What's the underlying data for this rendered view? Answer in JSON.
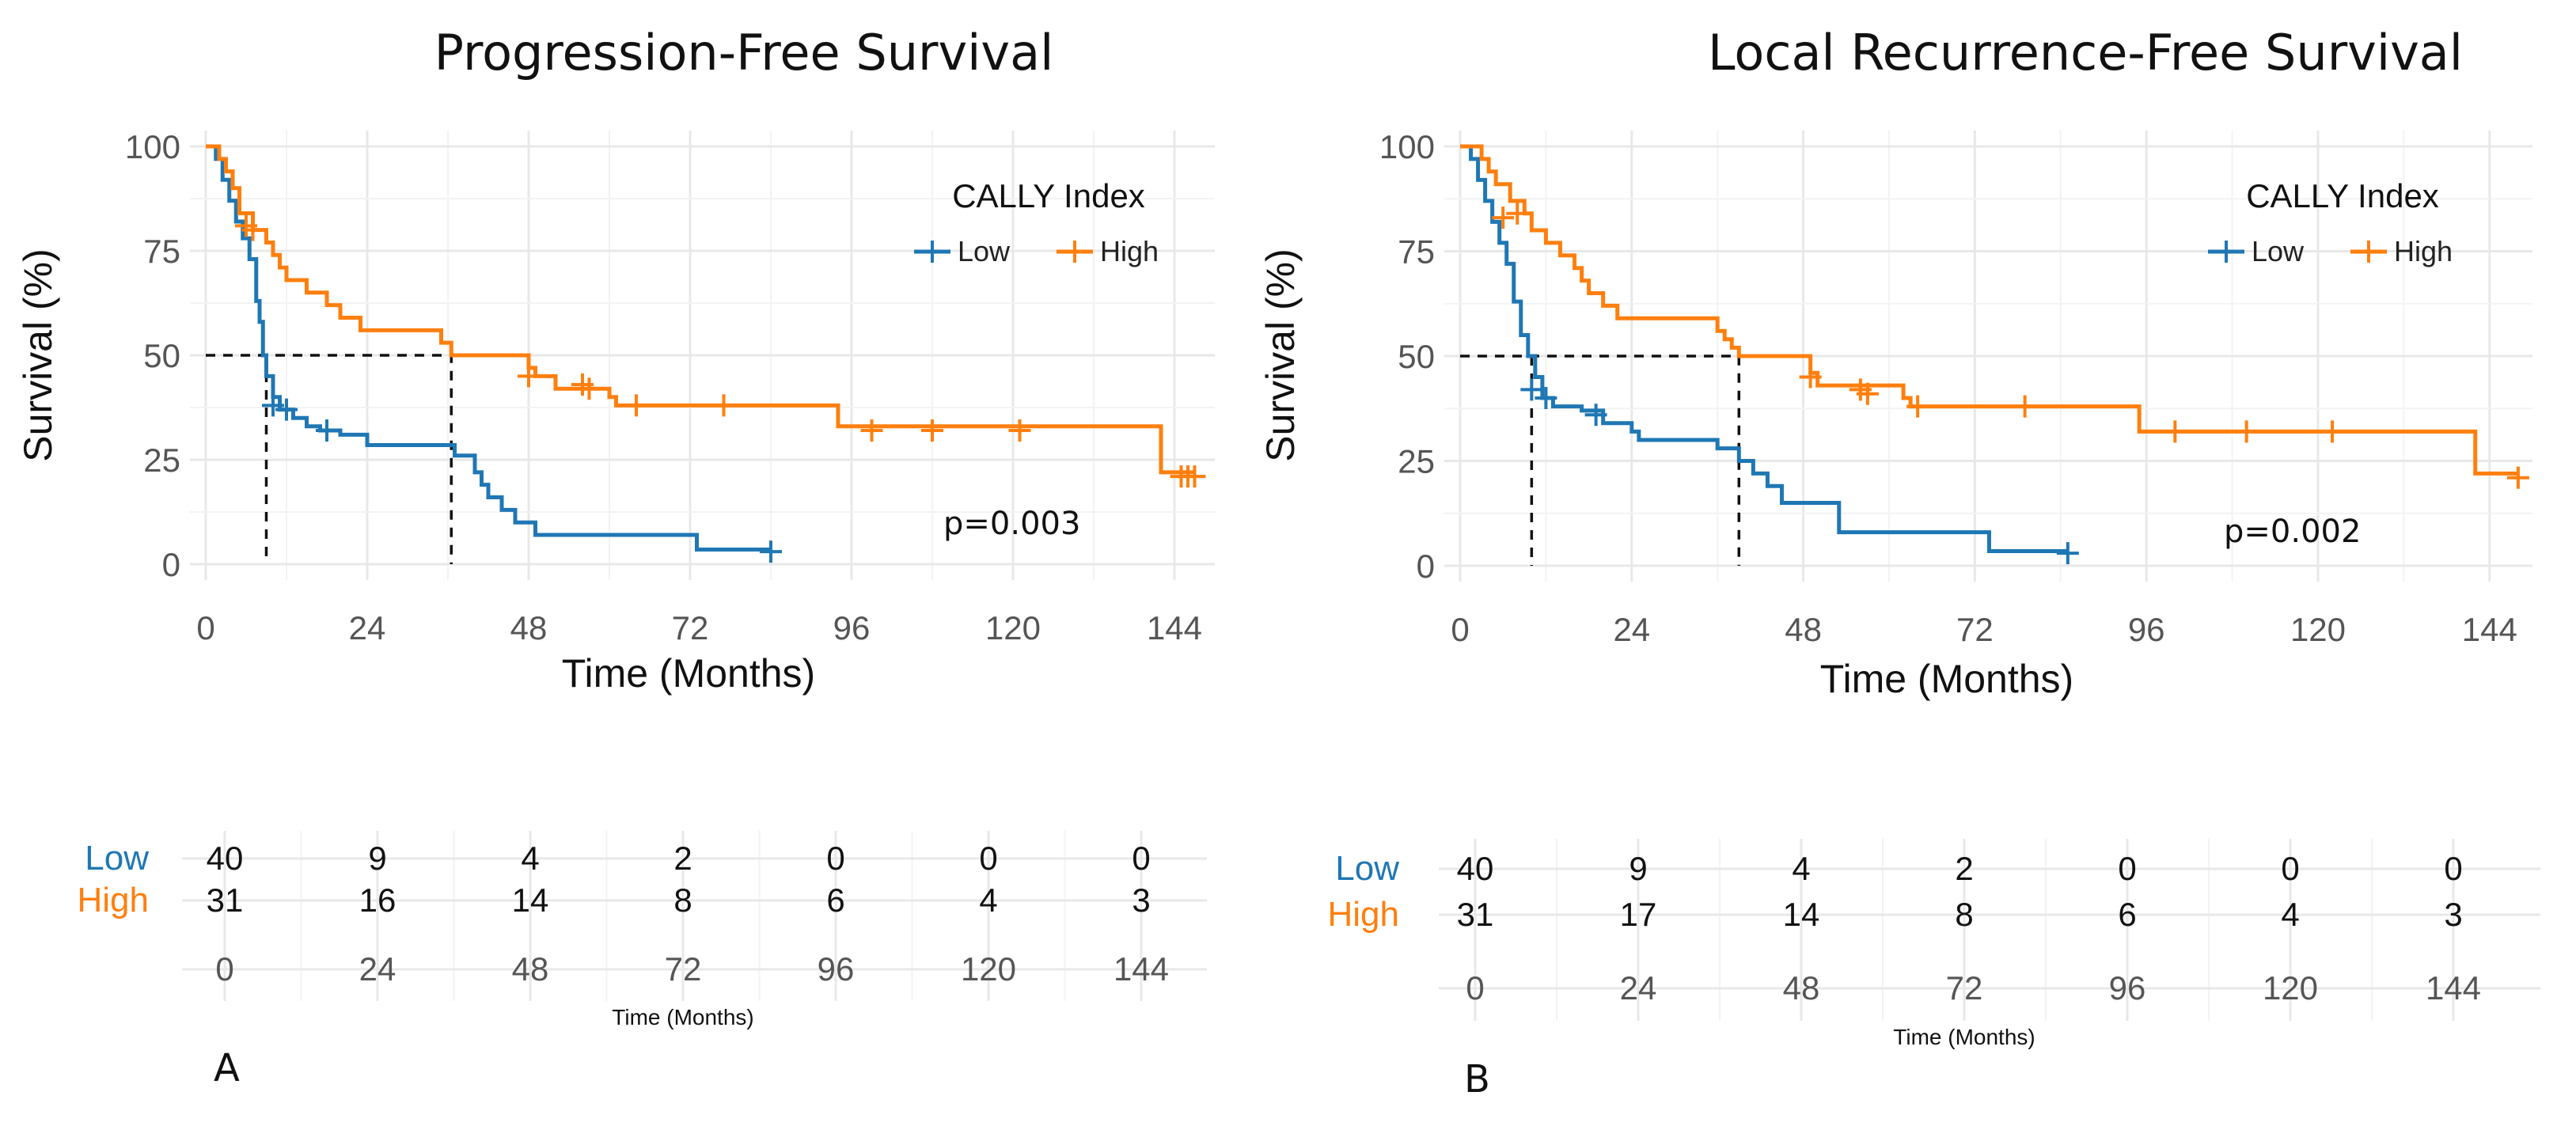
{
  "colors": {
    "low": "#1f77b4",
    "high": "#ff7f0e"
  },
  "chart_data": [
    {
      "type": "line",
      "panel_letter": "A",
      "title": "Progression-Free Survival",
      "xlabel": "Time (Months)",
      "ylabel": "Survival (%)",
      "xlim": [
        0,
        150
      ],
      "ylim": [
        0,
        100
      ],
      "x_ticks": [
        0,
        24,
        48,
        72,
        96,
        120,
        144
      ],
      "y_ticks": [
        0,
        25,
        50,
        75,
        100
      ],
      "legend": {
        "title": "CALLY Index",
        "position": "top-right",
        "entries": [
          "Low",
          "High"
        ]
      },
      "p_value": "p=0.003",
      "median_survival": {
        "Low": 9,
        "High": 36.5
      },
      "series": [
        {
          "name": "Low",
          "steps": [
            [
              0,
              100
            ],
            [
              1.5,
              97
            ],
            [
              2.5,
              92
            ],
            [
              3.5,
              87
            ],
            [
              4.5,
              82
            ],
            [
              5.5,
              78
            ],
            [
              6.5,
              73
            ],
            [
              7.5,
              63
            ],
            [
              8,
              58
            ],
            [
              8.5,
              50
            ],
            [
              9,
              45
            ],
            [
              10,
              40
            ],
            [
              11,
              37
            ],
            [
              13,
              35
            ],
            [
              15,
              33
            ],
            [
              17,
              32
            ],
            [
              20,
              31
            ],
            [
              24,
              28.5
            ],
            [
              37,
              26
            ],
            [
              40,
              22
            ],
            [
              41,
              19
            ],
            [
              42,
              16
            ],
            [
              44,
              13
            ],
            [
              46,
              10
            ],
            [
              49,
              7
            ],
            [
              73,
              3.5
            ],
            [
              84,
              3.5
            ]
          ],
          "censor": [
            [
              10,
              38
            ],
            [
              12,
              37
            ],
            [
              18,
              32
            ],
            [
              84,
              3
            ]
          ]
        },
        {
          "name": "High",
          "steps": [
            [
              0,
              100
            ],
            [
              2,
              97
            ],
            [
              3,
              94
            ],
            [
              4,
              90
            ],
            [
              5,
              84
            ],
            [
              7,
              80
            ],
            [
              9,
              77
            ],
            [
              10,
              74
            ],
            [
              11,
              71
            ],
            [
              12,
              68
            ],
            [
              15,
              65
            ],
            [
              18,
              62
            ],
            [
              20,
              59
            ],
            [
              23,
              56
            ],
            [
              35,
              53
            ],
            [
              36.5,
              50
            ],
            [
              48,
              47
            ],
            [
              49,
              45
            ],
            [
              52,
              42
            ],
            [
              60,
              40
            ],
            [
              61,
              38
            ],
            [
              94,
              33
            ],
            [
              142,
              22
            ],
            [
              147,
              22
            ]
          ],
          "censor": [
            [
              6,
              81
            ],
            [
              7,
              80
            ],
            [
              48,
              45
            ],
            [
              56,
              43
            ],
            [
              57,
              42
            ],
            [
              64,
              38
            ],
            [
              77,
              38
            ],
            [
              99,
              32
            ],
            [
              108,
              32
            ],
            [
              121,
              32
            ],
            [
              145,
              21
            ],
            [
              146,
              21
            ],
            [
              147,
              21
            ]
          ]
        }
      ],
      "risk_table": {
        "times": [
          "0",
          "24",
          "48",
          "72",
          "96",
          "120",
          "144"
        ],
        "rows": [
          {
            "label": "Low",
            "values": [
              "40",
              "9",
              "4",
              "2",
              "0",
              "0",
              "0"
            ]
          },
          {
            "label": "High",
            "values": [
              "31",
              "16",
              "14",
              "8",
              "6",
              "4",
              "3"
            ]
          }
        ],
        "xlabel": "Time (Months)"
      }
    },
    {
      "type": "line",
      "panel_letter": "B",
      "title": "Local Recurrence-Free Survival",
      "xlabel": "Time (Months)",
      "ylabel": "Survival (%)",
      "xlim": [
        0,
        150
      ],
      "ylim": [
        0,
        100
      ],
      "x_ticks": [
        0,
        24,
        48,
        72,
        96,
        120,
        144
      ],
      "y_ticks": [
        0,
        25,
        50,
        75,
        100
      ],
      "legend": {
        "title": "CALLY Index",
        "position": "top-right",
        "entries": [
          "Low",
          "High"
        ]
      },
      "p_value": "p=0.002",
      "median_survival": {
        "Low": 10,
        "High": 39
      },
      "series": [
        {
          "name": "Low",
          "steps": [
            [
              0,
              100
            ],
            [
              1.5,
              97
            ],
            [
              2.5,
              92
            ],
            [
              3.5,
              87
            ],
            [
              4.5,
              82
            ],
            [
              5.5,
              77
            ],
            [
              6.5,
              72
            ],
            [
              7.5,
              63
            ],
            [
              8.5,
              55
            ],
            [
              9.5,
              50
            ],
            [
              10.5,
              45
            ],
            [
              11.5,
              40
            ],
            [
              13,
              38
            ],
            [
              17,
              37
            ],
            [
              20,
              34
            ],
            [
              24,
              32
            ],
            [
              25,
              30
            ],
            [
              36,
              28
            ],
            [
              39,
              25
            ],
            [
              41,
              22
            ],
            [
              43,
              19
            ],
            [
              45,
              15
            ],
            [
              53,
              8
            ],
            [
              74,
              3.5
            ],
            [
              85,
              3.5
            ]
          ],
          "censor": [
            [
              10,
              42
            ],
            [
              12,
              40
            ],
            [
              19,
              36
            ],
            [
              85,
              3
            ]
          ]
        },
        {
          "name": "High",
          "steps": [
            [
              0,
              100
            ],
            [
              3,
              97
            ],
            [
              4,
              94
            ],
            [
              5,
              91
            ],
            [
              7,
              87
            ],
            [
              9,
              84
            ],
            [
              10,
              80
            ],
            [
              12,
              77
            ],
            [
              14,
              74
            ],
            [
              16,
              71
            ],
            [
              17,
              68
            ],
            [
              18,
              65
            ],
            [
              20,
              62
            ],
            [
              22,
              59
            ],
            [
              36,
              56
            ],
            [
              37,
              54
            ],
            [
              38,
              52
            ],
            [
              39,
              50
            ],
            [
              49,
              46
            ],
            [
              50,
              43
            ],
            [
              62,
              40
            ],
            [
              63,
              38
            ],
            [
              95,
              32
            ],
            [
              142,
              22
            ],
            [
              148,
              22
            ]
          ],
          "censor": [
            [
              6,
              83
            ],
            [
              8,
              84
            ],
            [
              49,
              45
            ],
            [
              56,
              42
            ],
            [
              57,
              41
            ],
            [
              64,
              38
            ],
            [
              79,
              38
            ],
            [
              100,
              32
            ],
            [
              110,
              32
            ],
            [
              122,
              32
            ],
            [
              148,
              21
            ]
          ]
        }
      ],
      "risk_table": {
        "times": [
          "0",
          "24",
          "48",
          "72",
          "96",
          "120",
          "144"
        ],
        "rows": [
          {
            "label": "Low",
            "values": [
              "40",
              "9",
              "4",
              "2",
              "0",
              "0",
              "0"
            ]
          },
          {
            "label": "High",
            "values": [
              "31",
              "17",
              "14",
              "8",
              "6",
              "4",
              "3"
            ]
          }
        ],
        "xlabel": "Time (Months)"
      }
    }
  ]
}
